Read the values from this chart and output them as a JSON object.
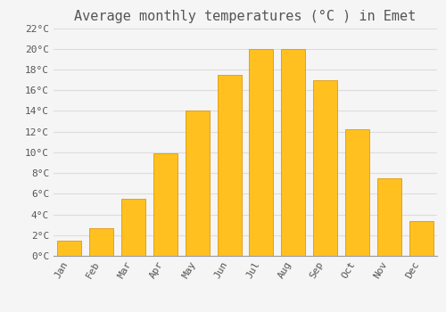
{
  "title": "Average monthly temperatures (°C ) in Emet",
  "months": [
    "Jan",
    "Feb",
    "Mar",
    "Apr",
    "May",
    "Jun",
    "Jul",
    "Aug",
    "Sep",
    "Oct",
    "Nov",
    "Dec"
  ],
  "values": [
    1.5,
    2.7,
    5.5,
    9.9,
    14.0,
    17.5,
    20.0,
    20.0,
    17.0,
    12.2,
    7.5,
    3.4
  ],
  "bar_color": "#FFC020",
  "bar_edge_color": "#E0980A",
  "background_color": "#F5F5F5",
  "grid_color": "#DDDDDD",
  "text_color": "#555555",
  "ylim": [
    0,
    22
  ],
  "yticks": [
    0,
    2,
    4,
    6,
    8,
    10,
    12,
    14,
    16,
    18,
    20,
    22
  ],
  "title_fontsize": 11,
  "tick_fontsize": 8,
  "font_family": "monospace"
}
